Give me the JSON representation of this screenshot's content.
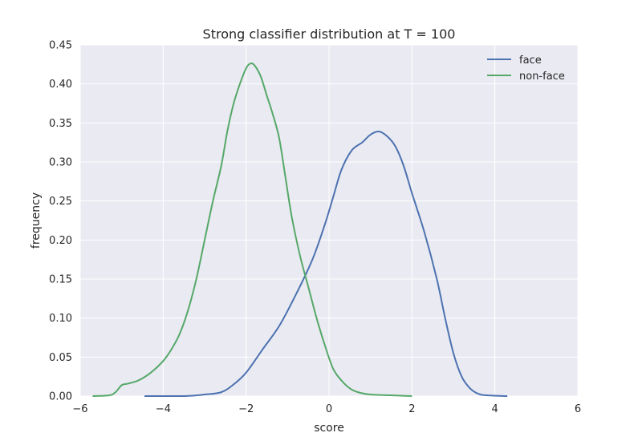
{
  "chart_data": {
    "type": "line",
    "title": "Strong classifier distribution at T = 100",
    "xlabel": "score",
    "ylabel": "frequency",
    "xlim": [
      -6,
      6
    ],
    "ylim": [
      0,
      0.45
    ],
    "xticks": [
      -6,
      -4,
      -2,
      0,
      2,
      4,
      6
    ],
    "xtick_labels": [
      "−6",
      "−4",
      "−2",
      "0",
      "2",
      "4",
      "6"
    ],
    "yticks": [
      0,
      0.05,
      0.1,
      0.15,
      0.2,
      0.25,
      0.3,
      0.35,
      0.4,
      0.45
    ],
    "ytick_labels": [
      "0.00",
      "0.05",
      "0.10",
      "0.15",
      "0.20",
      "0.25",
      "0.30",
      "0.35",
      "0.40",
      "0.45"
    ],
    "grid": true,
    "legend_position": "top-right",
    "background": "#eaeaf2",
    "series": [
      {
        "name": "face",
        "color": "#4c72b0",
        "points": [
          [
            -4.45,
            0.0
          ],
          [
            -3.5,
            0.0
          ],
          [
            -3.0,
            0.002
          ],
          [
            -2.6,
            0.005
          ],
          [
            -2.3,
            0.015
          ],
          [
            -2.0,
            0.03
          ],
          [
            -1.6,
            0.06
          ],
          [
            -1.2,
            0.09
          ],
          [
            -0.8,
            0.13
          ],
          [
            -0.4,
            0.175
          ],
          [
            -0.1,
            0.22
          ],
          [
            0.1,
            0.255
          ],
          [
            0.3,
            0.29
          ],
          [
            0.55,
            0.315
          ],
          [
            0.8,
            0.325
          ],
          [
            1.0,
            0.335
          ],
          [
            1.2,
            0.339
          ],
          [
            1.4,
            0.333
          ],
          [
            1.6,
            0.32
          ],
          [
            1.8,
            0.295
          ],
          [
            2.0,
            0.26
          ],
          [
            2.3,
            0.21
          ],
          [
            2.6,
            0.15
          ],
          [
            2.8,
            0.1
          ],
          [
            3.0,
            0.055
          ],
          [
            3.2,
            0.025
          ],
          [
            3.4,
            0.01
          ],
          [
            3.6,
            0.003
          ],
          [
            3.8,
            0.001
          ],
          [
            4.3,
            0.0
          ]
        ]
      },
      {
        "name": "non-face",
        "color": "#55a868",
        "points": [
          [
            -5.7,
            0.0
          ],
          [
            -5.3,
            0.001
          ],
          [
            -5.15,
            0.005
          ],
          [
            -5.0,
            0.014
          ],
          [
            -4.85,
            0.016
          ],
          [
            -4.6,
            0.02
          ],
          [
            -4.3,
            0.03
          ],
          [
            -4.0,
            0.045
          ],
          [
            -3.8,
            0.06
          ],
          [
            -3.6,
            0.08
          ],
          [
            -3.4,
            0.11
          ],
          [
            -3.2,
            0.15
          ],
          [
            -3.0,
            0.2
          ],
          [
            -2.8,
            0.25
          ],
          [
            -2.6,
            0.295
          ],
          [
            -2.45,
            0.34
          ],
          [
            -2.3,
            0.375
          ],
          [
            -2.15,
            0.4
          ],
          [
            -2.0,
            0.42
          ],
          [
            -1.9,
            0.426
          ],
          [
            -1.8,
            0.424
          ],
          [
            -1.65,
            0.41
          ],
          [
            -1.5,
            0.385
          ],
          [
            -1.35,
            0.36
          ],
          [
            -1.2,
            0.33
          ],
          [
            -1.05,
            0.28
          ],
          [
            -0.9,
            0.23
          ],
          [
            -0.7,
            0.18
          ],
          [
            -0.5,
            0.14
          ],
          [
            -0.3,
            0.1
          ],
          [
            -0.1,
            0.065
          ],
          [
            0.1,
            0.035
          ],
          [
            0.3,
            0.02
          ],
          [
            0.5,
            0.01
          ],
          [
            0.7,
            0.005
          ],
          [
            1.0,
            0.002
          ],
          [
            1.5,
            0.001
          ],
          [
            2.0,
            0.0
          ]
        ]
      }
    ]
  }
}
